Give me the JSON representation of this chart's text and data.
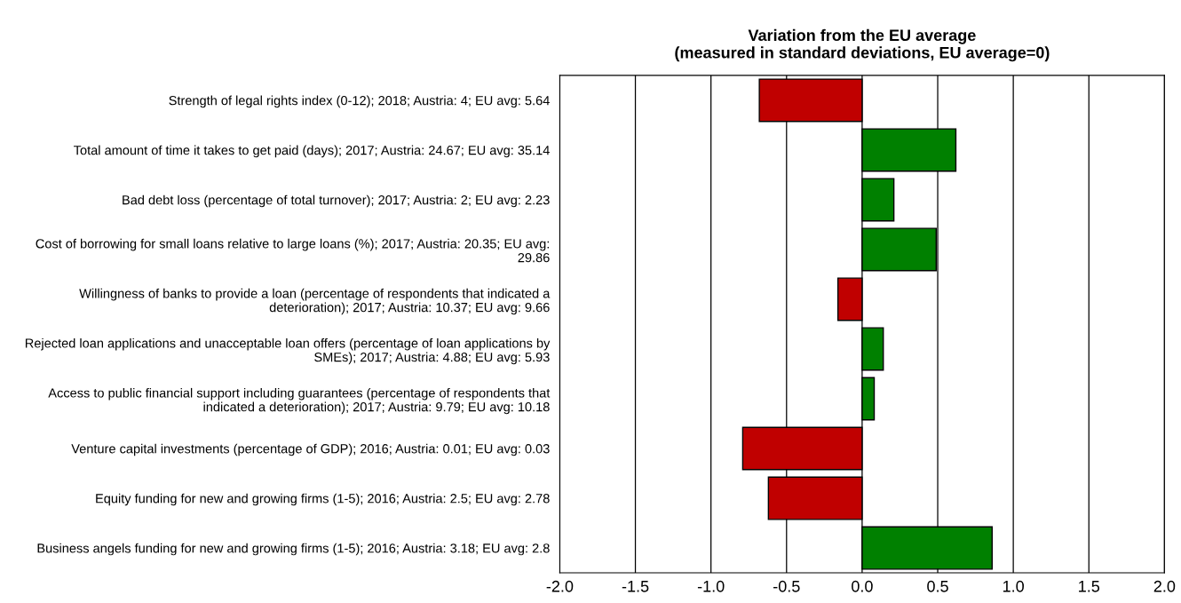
{
  "chart_data": {
    "type": "bar",
    "orientation": "horizontal",
    "title": "Variation from the EU average\n(measured in standard deviations, EU average=0)",
    "categories": [
      "Strength of legal rights index (0-12); 2018; Austria: 4; EU avg: 5.64",
      "Total amount of time it takes to get paid (days); 2017; Austria: 24.67; EU avg: 35.14",
      "Bad debt loss (percentage of total turnover); 2017; Austria: 2; EU avg: 2.23",
      "Cost of borrowing for small loans relative to large loans (%); 2017; Austria: 20.35; EU avg:\n29.86",
      "Willingness of banks to provide a loan (percentage of respondents that indicated a\ndeterioration); 2017; Austria: 10.37; EU avg: 9.66",
      "Rejected loan applications and unacceptable loan offers (percentage of loan applications by\nSMEs); 2017; Austria: 4.88; EU avg: 5.93",
      "Access to public financial support including guarantees (percentage of respondents that\nindicated a deterioration); 2017; Austria: 9.79; EU avg: 10.18",
      "Venture capital investments (percentage of GDP); 2016; Austria: 0.01; EU avg: 0.03",
      "Equity funding for new and growing firms (1-5); 2016; Austria: 2.5; EU avg: 2.78",
      "Business angels funding for new and growing firms (1-5); 2016; Austria: 3.18; EU avg: 2.8"
    ],
    "values": [
      -0.68,
      0.62,
      0.21,
      0.49,
      -0.16,
      0.14,
      0.08,
      -0.79,
      -0.62,
      0.86
    ],
    "colors": [
      "#c00000",
      "#008000",
      "#008000",
      "#008000",
      "#c00000",
      "#008000",
      "#008000",
      "#c00000",
      "#c00000",
      "#008000"
    ],
    "xlim": [
      -2.0,
      2.0
    ],
    "xticks": [
      {
        "value": -2.0,
        "label": "-2.0"
      },
      {
        "value": -1.5,
        "label": "-1.5"
      },
      {
        "value": -1.0,
        "label": "-1.0"
      },
      {
        "value": -0.5,
        "label": "-0.5"
      },
      {
        "value": 0.0,
        "label": "0.0"
      },
      {
        "value": 0.5,
        "label": "0.5"
      },
      {
        "value": 1.0,
        "label": "1.0"
      },
      {
        "value": 1.5,
        "label": "1.5"
      },
      {
        "value": 2.0,
        "label": "2.0"
      }
    ],
    "grid": "x"
  }
}
